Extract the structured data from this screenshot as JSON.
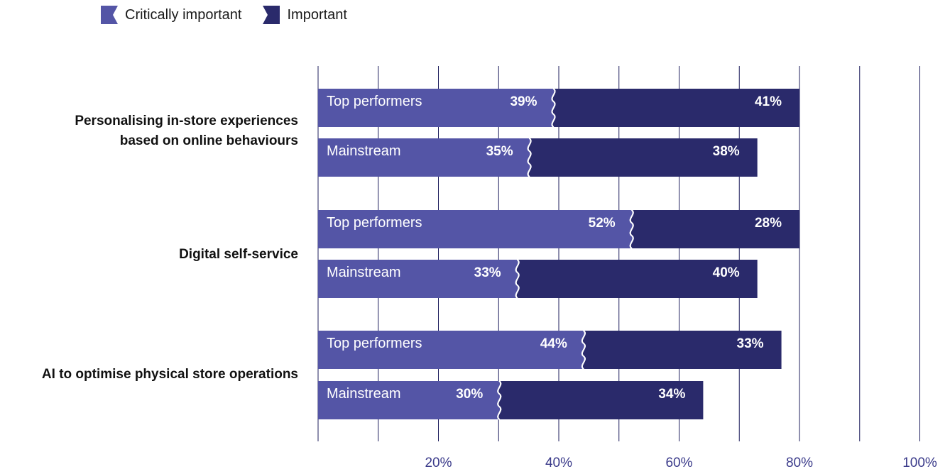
{
  "legend": [
    {
      "label": "Critically important",
      "color": "#5455a6"
    },
    {
      "label": "Important",
      "color": "#2a2a6b"
    }
  ],
  "chart_data": {
    "type": "bar",
    "orientation": "horizontal",
    "stacked": true,
    "categories": [
      [
        "Personalising in-store experiences",
        "based on online behaviours"
      ],
      [
        "Digital self-service"
      ],
      [
        "AI to optimise physical store operations"
      ]
    ],
    "groups": [
      "Top performers",
      "Mainstream"
    ],
    "series": [
      {
        "name": "Critically important",
        "values": [
          [
            39,
            35
          ],
          [
            52,
            33
          ],
          [
            44,
            30
          ]
        ]
      },
      {
        "name": "Important",
        "values": [
          [
            41,
            38
          ],
          [
            28,
            40
          ],
          [
            33,
            34
          ]
        ]
      }
    ],
    "xlim": [
      0,
      100
    ],
    "x_ticks": [
      20,
      40,
      60,
      80,
      100
    ],
    "x_tick_labels": [
      "20%",
      "40%",
      "60%",
      "80%",
      "100%"
    ],
    "value_suffix": "%",
    "grid": true,
    "legend_position": "top-left"
  }
}
